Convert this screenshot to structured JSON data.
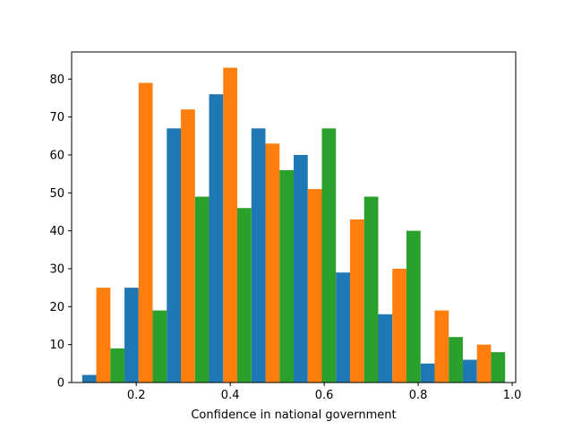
{
  "chart_data": {
    "type": "bar",
    "title": "",
    "xlabel": "Confidence in national government",
    "ylabel": "",
    "bin_edges": [
      0.085,
      0.175,
      0.265,
      0.355,
      0.445,
      0.535,
      0.625,
      0.715,
      0.805,
      0.895,
      0.985
    ],
    "series": [
      {
        "color": "#1f77b4",
        "values": [
          2,
          25,
          67,
          76,
          67,
          60,
          29,
          18,
          5,
          6
        ]
      },
      {
        "color": "#ff7f0e",
        "values": [
          25,
          79,
          72,
          83,
          63,
          51,
          43,
          30,
          19,
          10
        ]
      },
      {
        "color": "#2ca02c",
        "values": [
          9,
          19,
          49,
          46,
          56,
          67,
          49,
          40,
          12,
          8
        ]
      }
    ],
    "xlim": [
      0.0625,
      1.0075
    ],
    "ylim": [
      0,
      87.15
    ],
    "xticks": [
      0.2,
      0.4,
      0.6,
      0.8,
      1.0
    ],
    "xtick_labels": [
      "0.2",
      "0.4",
      "0.6",
      "0.8",
      "1.0"
    ],
    "yticks": [
      0,
      10,
      20,
      30,
      40,
      50,
      60,
      70,
      80
    ],
    "ytick_labels": [
      "0",
      "10",
      "20",
      "30",
      "40",
      "50",
      "60",
      "70",
      "80"
    ],
    "grid": false,
    "legend": "none"
  }
}
